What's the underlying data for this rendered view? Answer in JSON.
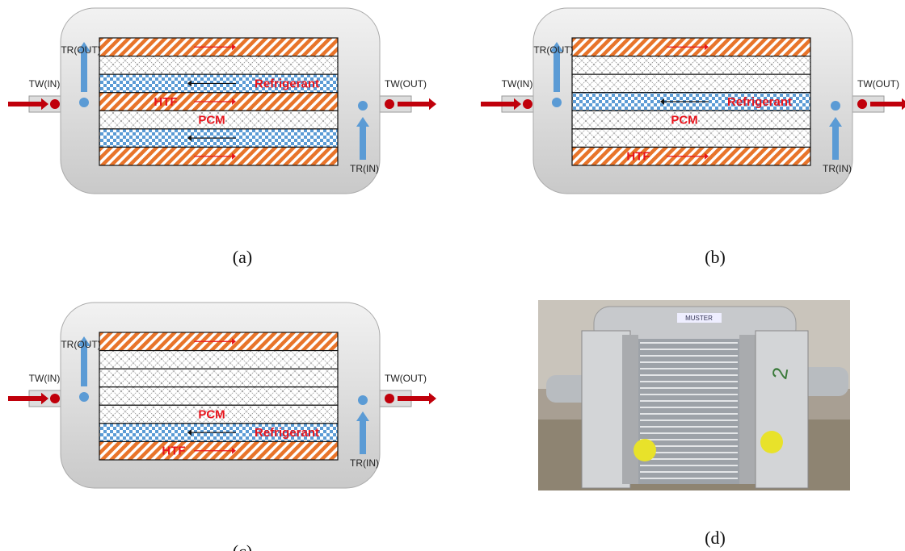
{
  "panels": [
    {
      "label": "(a)",
      "tw_in": "TW(IN)",
      "tw_out": "TW(OUT)",
      "tr_out": "TR(OUT)",
      "tr_in": "TR(IN)",
      "refrigerant": "Refrigerant",
      "htf": "HTF",
      "pcm": "PCM"
    },
    {
      "label": "(b)",
      "tw_in": "TW(IN)",
      "tw_out": "TW(OUT)",
      "tr_out": "TR(OUT)",
      "tr_in": "TR(IN)",
      "refrigerant": "Refrigerant",
      "htf": "HTF",
      "pcm": "PCM"
    },
    {
      "label": "(c)",
      "tw_in": "TW(IN)",
      "tw_out": "TW(OUT)",
      "tr_out": "TR(OUT)",
      "tr_in": "TR(IN)",
      "refrigerant": "Refrigerant",
      "htf": "HTF",
      "pcm": "PCM"
    }
  ],
  "photo": {
    "label": "(d)",
    "plate": "MUSTER",
    "marking": "2"
  }
}
